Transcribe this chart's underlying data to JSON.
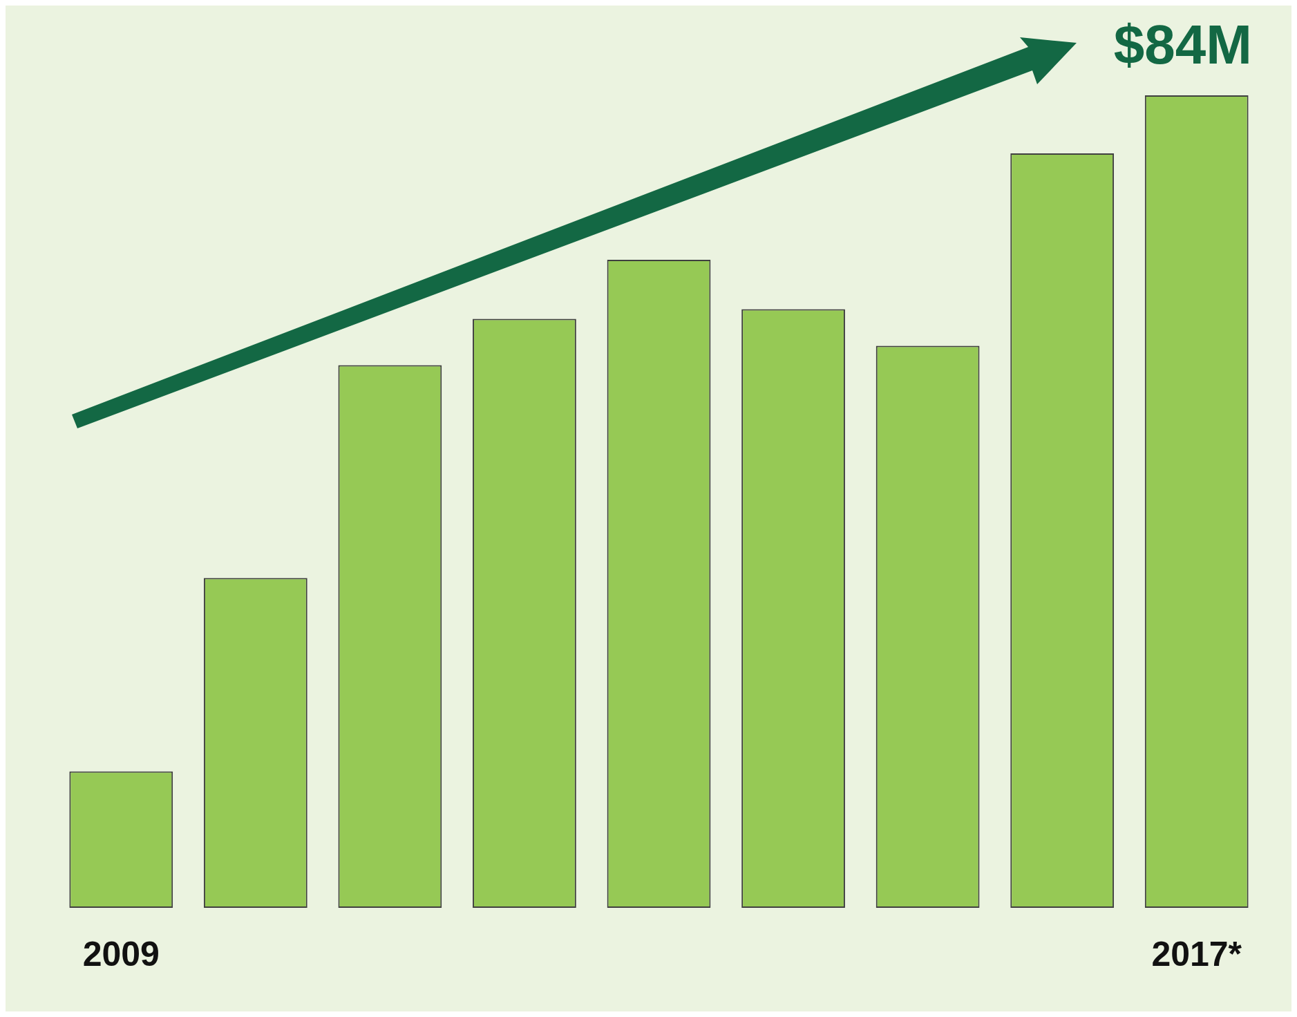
{
  "chart_data": {
    "type": "bar",
    "categories": [
      "2009",
      null,
      null,
      null,
      null,
      null,
      null,
      null,
      "2017*"
    ],
    "values": [
      14.1,
      34.1,
      56.1,
      60.9,
      67.0,
      61.9,
      58.1,
      78.0,
      84
    ],
    "color": "#96c955",
    "value_labels": [
      null,
      null,
      null,
      null,
      null,
      null,
      null,
      null,
      "$84M"
    ],
    "grid": false,
    "legend": false
  }
}
